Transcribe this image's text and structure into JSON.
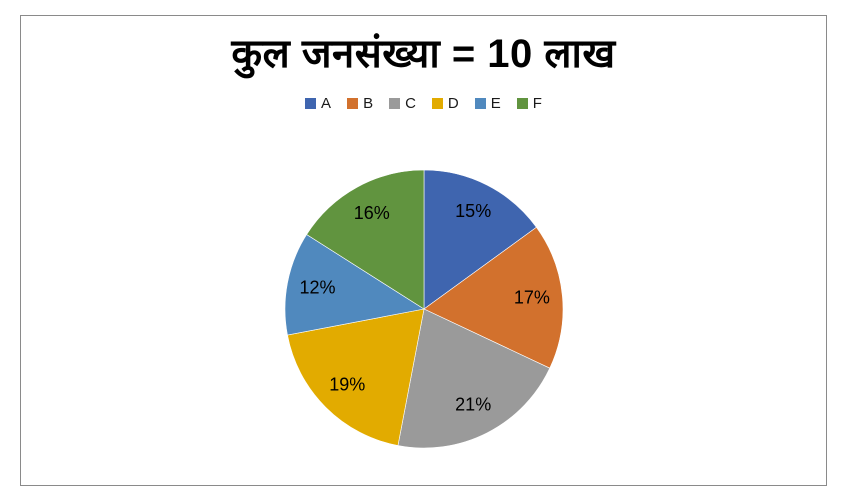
{
  "page": {
    "background_color": "#ffffff",
    "frame_border_color": "#8a8a8a"
  },
  "chart_data": {
    "type": "pie",
    "title": "कुल जनसंख्या = 10 लाख",
    "legend_position": "top",
    "legend_entries": [
      "A",
      "B",
      "C",
      "D",
      "E",
      "F"
    ],
    "categories": [
      "A",
      "B",
      "C",
      "D",
      "E",
      "F"
    ],
    "values": [
      15,
      17,
      21,
      19,
      12,
      16
    ],
    "value_unit": "%",
    "slice_labels": [
      "15%",
      "17%",
      "21%",
      "19%",
      "12%",
      "16%"
    ],
    "colors": [
      "#3f65af",
      "#d2712d",
      "#9a9a9a",
      "#e2ab00",
      "#5089be",
      "#61943f"
    ],
    "start_angle_deg_from_top": 0,
    "direction": "clockwise",
    "label_color": "#000000"
  }
}
